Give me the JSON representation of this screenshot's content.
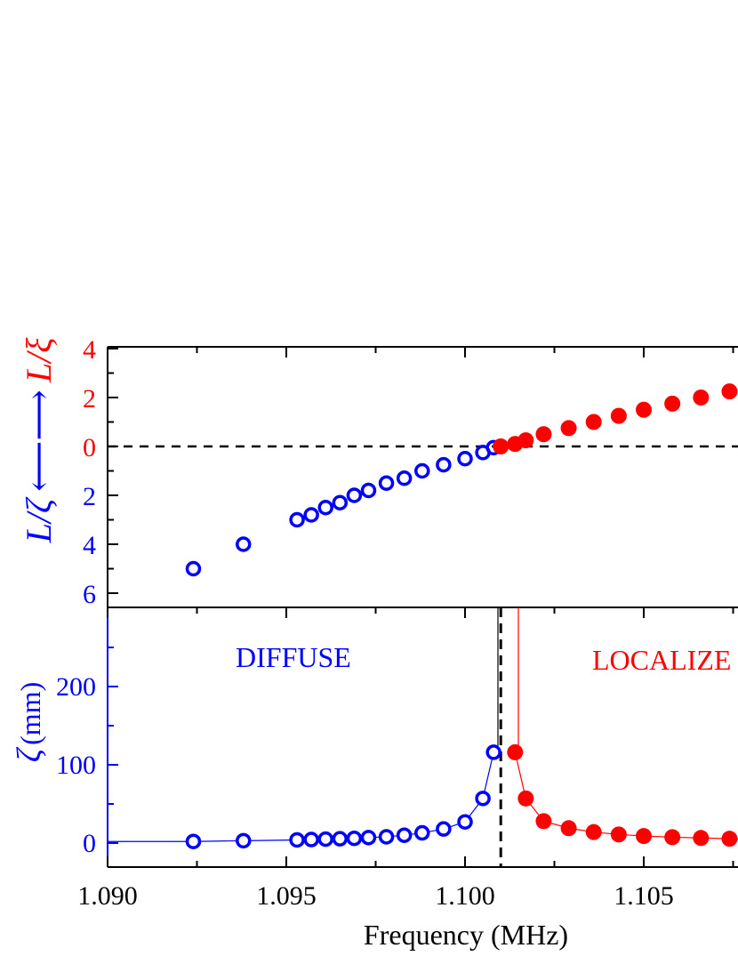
{
  "chart_data": [
    {
      "panel": "top",
      "type": "scatter",
      "xlim": [
        1.09,
        1.108
      ],
      "ylim_display": [
        -6.5,
        4
      ],
      "yticks": [
        4,
        2,
        0,
        -2,
        -4,
        -6
      ],
      "ytick_labels": [
        "4",
        "2",
        "0",
        "2",
        "4",
        "6"
      ],
      "yticks_color": [
        "#ff0000",
        "#ff0000",
        "#ff0000",
        "#0000ff",
        "#0000ff",
        "#0000ff"
      ],
      "ylabel_left": "L/ζ",
      "ylabel_arrow": "⟵⟶",
      "ylabel_right": "L/ξ",
      "reference_line_y": 0,
      "series": [
        {
          "marker": "open-circle",
          "color": "#0000ff",
          "x": [
            1.0924,
            1.0938,
            1.0953,
            1.0957,
            1.0961,
            1.0965,
            1.0969,
            1.0973,
            1.0978,
            1.0983,
            1.0988,
            1.0994,
            1.1,
            1.1005,
            1.1008
          ],
          "y": [
            -5.0,
            -4.0,
            -3.0,
            -2.8,
            -2.5,
            -2.3,
            -2.0,
            -1.8,
            -1.5,
            -1.3,
            -1.0,
            -0.75,
            -0.5,
            -0.25,
            -0.05
          ]
        },
        {
          "marker": "filled-circle",
          "color": "#ff0000",
          "x": [
            1.101,
            1.1014,
            1.1017,
            1.1022,
            1.1029,
            1.1036,
            1.1043,
            1.105,
            1.1058,
            1.1066,
            1.1074
          ],
          "y": [
            0.0,
            0.1,
            0.25,
            0.5,
            0.75,
            1.0,
            1.25,
            1.5,
            1.75,
            2.0,
            2.25
          ]
        }
      ]
    },
    {
      "panel": "bottom",
      "type": "line",
      "xlim": [
        1.09,
        1.108
      ],
      "ylim": [
        -30,
        300
      ],
      "yticks": [
        0,
        100,
        200
      ],
      "ytick_labels": [
        "0",
        "100",
        "200"
      ],
      "ylabel_symbol": "ζ",
      "ylabel_unit": "(mm)",
      "xticks": [
        1.09,
        1.095,
        1.1,
        1.105
      ],
      "xtick_labels": [
        "1.090",
        "1.095",
        "1.100",
        "1.105"
      ],
      "xlabel": "Frequency (MHz)",
      "transition_x": 1.101,
      "annotations": [
        {
          "text": "DIFFUSE",
          "color": "#0000ff"
        },
        {
          "text": "LOCALIZE",
          "color": "#ff0000"
        }
      ],
      "series": [
        {
          "marker": "open-circle",
          "color": "#0000ff",
          "x": [
            1.0924,
            1.0938,
            1.0953,
            1.0957,
            1.0961,
            1.0965,
            1.0969,
            1.0973,
            1.0978,
            1.0983,
            1.0988,
            1.0994,
            1.1,
            1.1005,
            1.1008
          ],
          "y": [
            2,
            3,
            4,
            4.5,
            5,
            5.5,
            6,
            7,
            8,
            10,
            13,
            18,
            27,
            57,
            116
          ]
        },
        {
          "marker": "filled-circle",
          "color": "#ff0000",
          "x": [
            1.1014,
            1.1017,
            1.1022,
            1.1029,
            1.1036,
            1.1043,
            1.105,
            1.1058,
            1.1066,
            1.1074
          ],
          "y": [
            116,
            57,
            28,
            19,
            14,
            11,
            9,
            7.5,
            6.5,
            5.5
          ]
        }
      ]
    }
  ]
}
